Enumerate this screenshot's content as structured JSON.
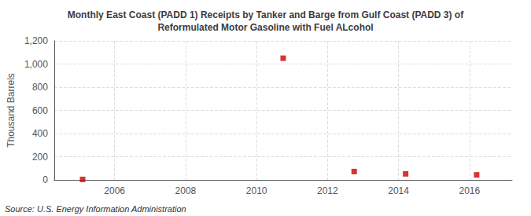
{
  "chart_data": {
    "type": "scatter",
    "title": "Monthly East Coast (PADD 1) Receipts by Tanker and Barge from Gulf Coast (PADD 3) of\nReformulated Motor Gasoline with Fuel ALcohol",
    "ylabel": "Thousand Barrels",
    "annotations": [
      "Source: U.S. Energy Information Administration"
    ],
    "x": [
      2005.1,
      2010.75,
      2012.75,
      2014.2,
      2016.2
    ],
    "values": [
      4,
      1050,
      72,
      52,
      43
    ],
    "color": "#cc0000",
    "marker": "square",
    "xlim": [
      2004.3,
      2017.2
    ],
    "xticks": [
      2006,
      2008,
      2010,
      2012,
      2014,
      2016
    ],
    "ylim": [
      0,
      1200
    ],
    "yticks": [
      0,
      200,
      400,
      600,
      800,
      {
        "value": 1000,
        "label": "1,000"
      },
      {
        "value": 1200,
        "label": "1,200"
      }
    ],
    "grid": true
  }
}
